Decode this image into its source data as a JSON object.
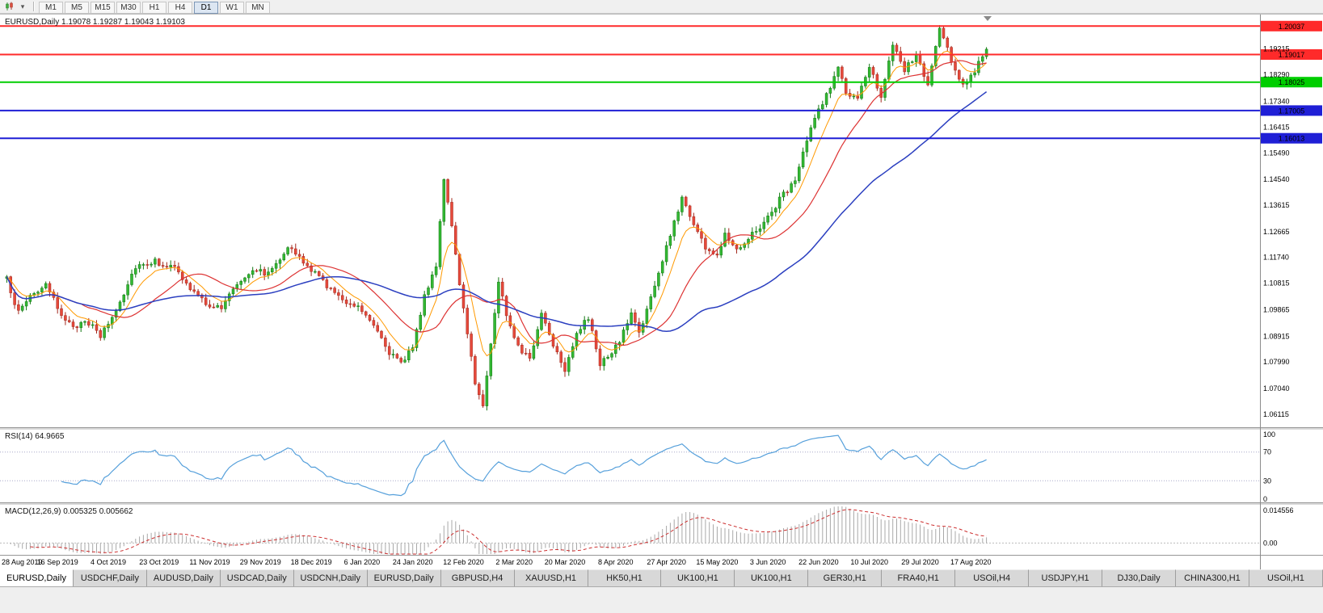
{
  "toolbar": {
    "timeframes": [
      "M1",
      "M5",
      "M15",
      "M30",
      "H1",
      "H4",
      "D1",
      "W1",
      "MN"
    ],
    "active_timeframe": "D1",
    "icons": [
      {
        "name": "candlestick-chart-icon"
      },
      {
        "name": "chart-style-dropdown-icon",
        "glyph": "▾"
      }
    ]
  },
  "chart": {
    "title": "EURUSD,Daily 1.19078 1.19287 1.19043 1.19103"
  },
  "chart_data": {
    "type": "candlestick",
    "symbol": "EURUSD",
    "timeframe": "Daily",
    "quote": {
      "open": "1.19078",
      "high": "1.19287",
      "low": "1.19043",
      "close": "1.19103"
    },
    "num_candles": 252,
    "label_every": 13,
    "noise": 0.0022,
    "x_labels": [
      "28 Aug 2019",
      "16 Sep 2019",
      "4 Oct 2019",
      "23 Oct 2019",
      "11 Nov 2019",
      "29 Nov 2019",
      "18 Dec 2019",
      "6 Jan 2020",
      "24 Jan 2020",
      "12 Feb 2020",
      "2 Mar 2020",
      "20 Mar 2020",
      "8 Apr 2020",
      "27 Apr 2020",
      "15 May 2020",
      "3 Jun 2020",
      "22 Jun 2020",
      "10 Jul 2020",
      "29 Jul 2020",
      "17 Aug 2020"
    ],
    "price_axis": {
      "min": 1.0565,
      "max": 1.2045,
      "ticks": [
        "1.19215",
        "1.18290",
        "1.17340",
        "1.16415",
        "1.15490",
        "1.14540",
        "1.13615",
        "1.12665",
        "1.11740",
        "1.10815",
        "1.09865",
        "1.08915",
        "1.07990",
        "1.07040",
        "1.06115"
      ]
    },
    "waypoints": [
      [
        0,
        1.1095
      ],
      [
        3,
        1.0975
      ],
      [
        6,
        1.104
      ],
      [
        10,
        1.107
      ],
      [
        13,
        1.0995
      ],
      [
        17,
        1.0915
      ],
      [
        20,
        1.0955
      ],
      [
        24,
        1.089
      ],
      [
        28,
        1.0985
      ],
      [
        33,
        1.1145
      ],
      [
        38,
        1.116
      ],
      [
        43,
        1.1135
      ],
      [
        47,
        1.106
      ],
      [
        51,
        1.101
      ],
      [
        55,
        1.099
      ],
      [
        58,
        1.1065
      ],
      [
        63,
        1.1135
      ],
      [
        67,
        1.1115
      ],
      [
        72,
        1.1215
      ],
      [
        76,
        1.1155
      ],
      [
        81,
        1.109
      ],
      [
        85,
        1.103
      ],
      [
        90,
        1.1
      ],
      [
        94,
        1.094
      ],
      [
        98,
        1.0835
      ],
      [
        101,
        1.079
      ],
      [
        104,
        1.086
      ],
      [
        107,
        1.103
      ],
      [
        110,
        1.115
      ],
      [
        112,
        1.146
      ],
      [
        114,
        1.128
      ],
      [
        116,
        1.107
      ],
      [
        118,
        1.091
      ],
      [
        120,
        1.072
      ],
      [
        122,
        1.065
      ],
      [
        124,
        1.086
      ],
      [
        126,
        1.109
      ],
      [
        128,
        1.097
      ],
      [
        131,
        1.086
      ],
      [
        134,
        1.0805
      ],
      [
        137,
        1.0975
      ],
      [
        140,
        1.0865
      ],
      [
        143,
        1.0775
      ],
      [
        146,
        1.0905
      ],
      [
        149,
        1.0955
      ],
      [
        152,
        1.0795
      ],
      [
        155,
        1.0825
      ],
      [
        158,
        1.0905
      ],
      [
        160,
        1.0975
      ],
      [
        162,
        1.0905
      ],
      [
        164,
        1.0985
      ],
      [
        167,
        1.1115
      ],
      [
        170,
        1.1255
      ],
      [
        173,
        1.139
      ],
      [
        176,
        1.1295
      ],
      [
        179,
        1.121
      ],
      [
        182,
        1.1175
      ],
      [
        184,
        1.1265
      ],
      [
        187,
        1.1205
      ],
      [
        190,
        1.1245
      ],
      [
        193,
        1.1285
      ],
      [
        196,
        1.1335
      ],
      [
        199,
        1.1405
      ],
      [
        202,
        1.1445
      ],
      [
        205,
        1.1595
      ],
      [
        208,
        1.1705
      ],
      [
        211,
        1.1785
      ],
      [
        213,
        1.1855
      ],
      [
        215,
        1.1765
      ],
      [
        218,
        1.1735
      ],
      [
        221,
        1.1865
      ],
      [
        224,
        1.1755
      ],
      [
        227,
        1.193
      ],
      [
        230,
        1.1845
      ],
      [
        233,
        1.19
      ],
      [
        236,
        1.179
      ],
      [
        239,
        1.1995
      ],
      [
        242,
        1.188
      ],
      [
        245,
        1.179
      ],
      [
        248,
        1.1845
      ],
      [
        251,
        1.191
      ]
    ],
    "hlines": [
      {
        "price": 1.20037,
        "label": "1.20037",
        "color": "#FF2A2A",
        "width": 2
      },
      {
        "price": 1.19017,
        "label": "1.19017",
        "color": "#FF2A2A",
        "width": 2
      },
      {
        "price": 1.18025,
        "label": "1.18025",
        "color": "#00CE00",
        "width": 2
      },
      {
        "price": 1.17005,
        "label": "1.17005",
        "color": "#1F1FD6",
        "width": 2
      },
      {
        "price": 1.16013,
        "label": "1.16013",
        "color": "#1F1FD6",
        "width": 2
      }
    ],
    "moving_averages": [
      {
        "name": "fast",
        "type": "ema",
        "period": 8
      },
      {
        "name": "mid",
        "type": "sma",
        "period": 20
      },
      {
        "name": "slow",
        "type": "sma",
        "period": 55
      }
    ],
    "rsi": {
      "label": "RSI(14) 64.9665",
      "period": 14,
      "levels": [
        70,
        30
      ],
      "ticks": [
        "100",
        "70",
        "30",
        "0"
      ]
    },
    "macd": {
      "label": "MACD(12,26,9) 0.005325 0.005662",
      "fast": 12,
      "slow": 26,
      "signal": 9,
      "range": [
        -0.0046,
        0.0146
      ],
      "ticks": [
        "0.014556",
        "0.00"
      ]
    },
    "colors": {
      "up": "#33B833",
      "up_stroke": "#117711",
      "down": "#E6493B",
      "down_stroke": "#A3281D",
      "ma_fast": "#FF9900",
      "ma_mid": "#DD3333",
      "ma_slow": "#2B3FC0",
      "rsi": "#56A0DB",
      "rsi_level": "#A8A8C8",
      "macd_hist": "#A8A8A8",
      "macd_signal": "#CC2E2E",
      "tag_text": "#FFFFFF"
    }
  },
  "tabs": [
    {
      "label": "EURUSD,Daily",
      "active": true
    },
    {
      "label": "USDCHF,Daily",
      "active": false
    },
    {
      "label": "AUDUSD,Daily",
      "active": false
    },
    {
      "label": "USDCAD,Daily",
      "active": false
    },
    {
      "label": "USDCNH,Daily",
      "active": false
    },
    {
      "label": "EURUSD,Daily",
      "active": false
    },
    {
      "label": "GBPUSD,H4",
      "active": false
    },
    {
      "label": "XAUUSD,H1",
      "active": false
    },
    {
      "label": "HK50,H1",
      "active": false
    },
    {
      "label": "UK100,H1",
      "active": false
    },
    {
      "label": "UK100,H1",
      "active": false
    },
    {
      "label": "GER30,H1",
      "active": false
    },
    {
      "label": "FRA40,H1",
      "active": false
    },
    {
      "label": "USOil,H4",
      "active": false
    },
    {
      "label": "USDJPY,H1",
      "active": false
    },
    {
      "label": "DJ30,Daily",
      "active": false
    },
    {
      "label": "CHINA300,H1",
      "active": false
    },
    {
      "label": "USOil,H1",
      "active": false
    }
  ]
}
